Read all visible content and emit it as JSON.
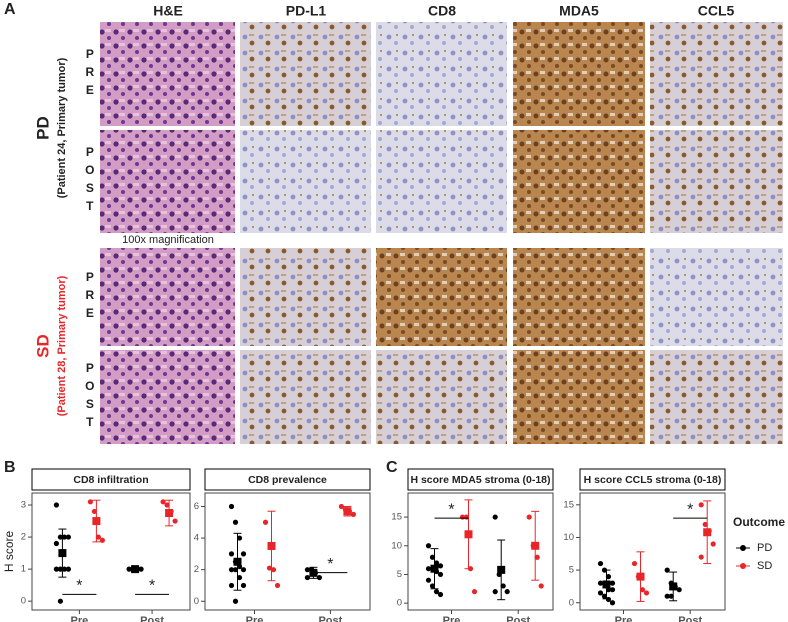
{
  "panel_a": {
    "label": "A",
    "columns": [
      "H&E",
      "PD-L1",
      "CD8",
      "MDA5",
      "CCL5"
    ],
    "groups": [
      {
        "name": "PD",
        "subtitle": "(Patient 24, Primary tumor)",
        "timepoints": [
          "PRE",
          "POST"
        ]
      },
      {
        "name": "SD",
        "subtitle": "(Patient 28, Primary tumor)",
        "timepoints": [
          "PRE",
          "POST"
        ]
      }
    ],
    "magnification": "100x magnification"
  },
  "chart_data": [
    {
      "type": "dot",
      "panel": "B",
      "title": "CD8 infiltration",
      "y_label": "H score",
      "categories": [
        "Pre",
        "Post"
      ],
      "ylim": [
        -0.15,
        3.25
      ],
      "yticks": [
        0,
        1,
        2,
        3
      ],
      "series": [
        {
          "name": "PD",
          "color": "#000000",
          "values": [
            [
              3,
              2,
              2,
              2,
              1.8,
              1,
              1,
              1,
              1,
              0
            ],
            [
              1,
              1,
              1,
              1
            ]
          ],
          "mean": [
            1.5,
            1
          ],
          "error": [
            0.75,
            0.05
          ]
        },
        {
          "name": "SD",
          "color": "#e8262a",
          "values": [
            [
              3.1,
              2.8,
              2,
              1.9
            ],
            [
              3.1,
              3,
              2.8,
              2.5
            ]
          ],
          "mean": [
            2.5,
            2.75
          ],
          "error": [
            0.65,
            0.4
          ]
        }
      ],
      "annotations": [
        {
          "text": "*",
          "category": 0
        },
        {
          "text": "*",
          "category": 1
        }
      ],
      "legend_title": "Outcome"
    },
    {
      "type": "dot",
      "title": "CD8  prevalence",
      "categories": [
        "Pre",
        "Post"
      ],
      "ylim": [
        -0.3,
        6.6
      ],
      "yticks": [
        0,
        2,
        4,
        6
      ],
      "series": [
        {
          "name": "PD",
          "color": "#000000",
          "values": [
            [
              6,
              5,
              4,
              3,
              3,
              2.5,
              2.2,
              2,
              2,
              2,
              1.5,
              1,
              1,
              0
            ],
            [
              2,
              2,
              1.8,
              1.5,
              1.5
            ]
          ],
          "mean": [
            2.5,
            1.8
          ],
          "error": [
            1.8,
            0.35
          ]
        },
        {
          "name": "SD",
          "color": "#e8262a",
          "values": [
            [
              5,
              2.1,
              2,
              1
            ],
            [
              6,
              5.8,
              5.7,
              5.5
            ]
          ],
          "mean": [
            3.5,
            5.7
          ],
          "error": [
            2.2,
            0.3
          ]
        }
      ],
      "annotations": [
        {
          "text": "*",
          "category": 1
        }
      ]
    },
    {
      "type": "dot",
      "panel": "C",
      "title": "H score MDA5 stroma (0-18)",
      "categories": [
        "Pre",
        "Post"
      ],
      "ylim": [
        -0.5,
        18.5
      ],
      "yticks": [
        0,
        5,
        10,
        15
      ],
      "series": [
        {
          "name": "PD",
          "color": "#000000",
          "values": [
            [
              10,
              8,
              7,
              6.5,
              6,
              6,
              5.5,
              5,
              4,
              3,
              2,
              1.5
            ],
            [
              15,
              5,
              3,
              2,
              2
            ]
          ],
          "mean": [
            6,
            5.8
          ],
          "error": [
            3.5,
            5.2
          ]
        },
        {
          "name": "SD",
          "color": "#e8262a",
          "values": [
            [
              15,
              15,
              6,
              2
            ],
            [
              15,
              10,
              8,
              3
            ]
          ],
          "mean": [
            12,
            10
          ],
          "error": [
            6,
            6
          ]
        }
      ],
      "annotations": [
        {
          "text": "*",
          "category": 0
        }
      ]
    },
    {
      "type": "dot",
      "title": "H score CCL5 stroma (0-18)",
      "categories": [
        "Pre",
        "Post"
      ],
      "ylim": [
        -0.5,
        16.2
      ],
      "yticks": [
        0,
        5,
        10,
        15
      ],
      "series": [
        {
          "name": "PD",
          "color": "#000000",
          "values": [
            [
              6,
              5,
              4,
              3,
              3,
              3,
              2,
              2,
              1.5,
              1,
              0.5,
              0
            ],
            [
              5,
              3,
              2.5,
              2,
              1,
              1
            ]
          ],
          "mean": [
            2.8,
            2.5
          ],
          "error": [
            2.2,
            2.2
          ]
        },
        {
          "name": "SD",
          "color": "#e8262a",
          "values": [
            [
              6,
              4,
              2,
              1.5
            ],
            [
              15,
              12,
              11,
              9,
              7
            ]
          ],
          "mean": [
            4,
            10.8
          ],
          "error": [
            3.8,
            4.8
          ]
        }
      ],
      "annotations": [
        {
          "text": "*",
          "category": 1
        }
      ]
    }
  ]
}
